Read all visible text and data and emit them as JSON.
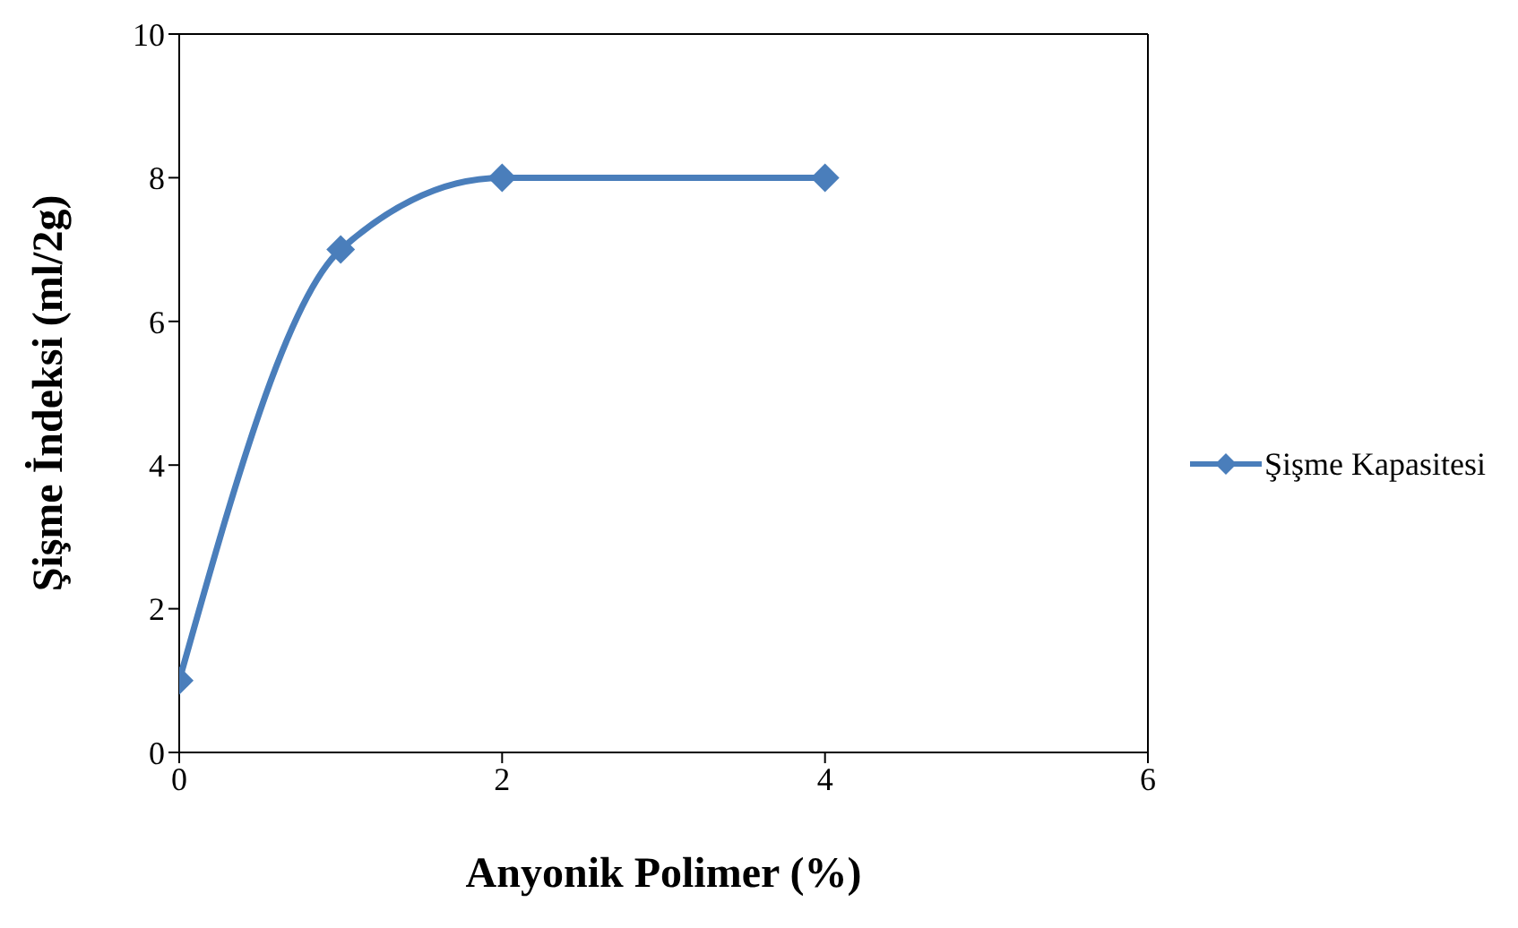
{
  "chart_data": {
    "type": "line",
    "xlabel": "Anyonik Polimer (%)",
    "ylabel": "Şişme İndeksi (ml/2g)",
    "x": [
      0,
      1,
      2,
      4
    ],
    "series": [
      {
        "name": "Şişme Kapasitesi",
        "color": "#4a7ebb",
        "values": [
          1,
          7,
          8,
          8
        ]
      }
    ],
    "xlim": [
      0,
      6
    ],
    "xticks": [
      0,
      2,
      4,
      6
    ],
    "ylim": [
      0,
      10
    ],
    "yticks": [
      0,
      2,
      4,
      6,
      8,
      10
    ],
    "grid": false,
    "legend": "right",
    "marker": "diamond",
    "line_style": "solid"
  }
}
